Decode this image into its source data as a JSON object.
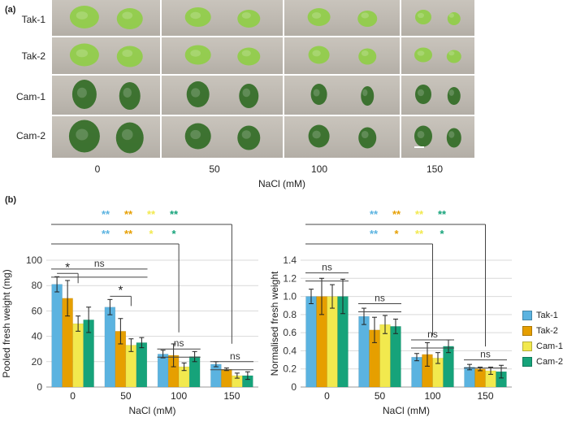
{
  "panel_a": {
    "label": "(a)",
    "rows": [
      "Tak-1",
      "Tak-2",
      "Cam-1",
      "Cam-2"
    ],
    "columns": [
      "0",
      "50",
      "100",
      "150"
    ],
    "xlabel": "NaCl (mM)",
    "colors": {
      "Tak": "#8fce45",
      "Cam": "#2f6a22"
    }
  },
  "panel_b": {
    "label": "(b)"
  },
  "legend": {
    "items": [
      {
        "name": "Tak-1",
        "color": "#5bb3e0"
      },
      {
        "name": "Tak-2",
        "color": "#e69f00"
      },
      {
        "name": "Cam-1",
        "color": "#f2e94e"
      },
      {
        "name": "Cam-2",
        "color": "#16a37a"
      }
    ]
  },
  "chart_data": [
    {
      "type": "bar",
      "categories": [
        "0",
        "50",
        "100",
        "150"
      ],
      "series": [
        {
          "name": "Tak-1",
          "values": [
            81,
            63,
            26,
            18
          ],
          "errors": [
            6,
            6,
            3,
            2
          ]
        },
        {
          "name": "Tak-2",
          "values": [
            70,
            44,
            25,
            14
          ],
          "errors": [
            14,
            10,
            9,
            1
          ]
        },
        {
          "name": "Cam-1",
          "values": [
            50,
            33,
            16,
            9
          ],
          "errors": [
            6,
            5,
            3,
            2
          ]
        },
        {
          "name": "Cam-2",
          "values": [
            53,
            35,
            24,
            9
          ],
          "errors": [
            10,
            4,
            4,
            3
          ]
        }
      ],
      "xlabel": "NaCl (mM)",
      "ylabel": "Pooled fresh weight (mg)",
      "ylim": [
        0,
        100
      ],
      "yticks": [
        "0",
        "20",
        "40",
        "60",
        "80",
        "100"
      ],
      "grid": true,
      "annotations": {
        "top_stars": [
          "**",
          "**",
          "**",
          "**"
        ],
        "second_stars": [
          "**",
          "**",
          "*",
          "*"
        ],
        "ns": [
          "ns",
          "ns",
          "ns"
        ],
        "within_group_star": [
          "*",
          "*"
        ]
      }
    },
    {
      "type": "bar",
      "categories": [
        "0",
        "50",
        "100",
        "150"
      ],
      "series": [
        {
          "name": "Tak-1",
          "values": [
            1.0,
            0.78,
            0.33,
            0.22
          ],
          "errors": [
            0.08,
            0.09,
            0.04,
            0.03
          ]
        },
        {
          "name": "Tak-2",
          "values": [
            1.0,
            0.63,
            0.36,
            0.2
          ],
          "errors": [
            0.2,
            0.14,
            0.13,
            0.02
          ]
        },
        {
          "name": "Cam-1",
          "values": [
            1.0,
            0.69,
            0.32,
            0.18
          ],
          "errors": [
            0.13,
            0.1,
            0.06,
            0.04
          ]
        },
        {
          "name": "Cam-2",
          "values": [
            1.0,
            0.67,
            0.45,
            0.17
          ],
          "errors": [
            0.19,
            0.08,
            0.07,
            0.07
          ]
        }
      ],
      "xlabel": "NaCl (mM)",
      "ylabel": "Normalised fresh weight",
      "ylim": [
        0,
        1.4
      ],
      "yticks": [
        "0",
        "0.2",
        "0.4",
        "0.6",
        "0.8",
        "1.0",
        "1.2",
        "1.4"
      ],
      "grid": true,
      "annotations": {
        "top_stars": [
          "**",
          "**",
          "**",
          "**"
        ],
        "second_stars": [
          "**",
          "*",
          "**",
          "*"
        ],
        "ns": [
          "ns",
          "ns",
          "ns",
          "ns"
        ]
      }
    }
  ]
}
